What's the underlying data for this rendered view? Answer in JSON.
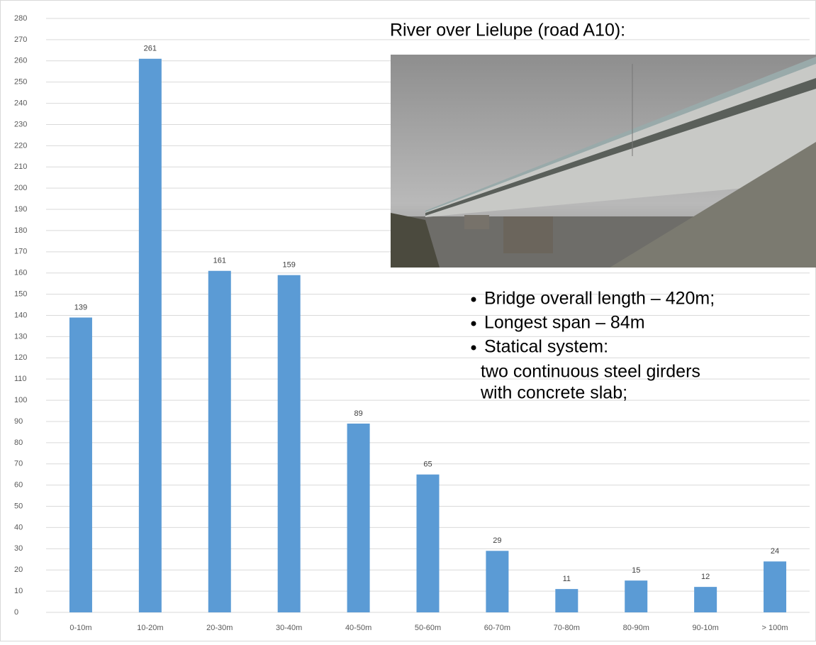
{
  "chart_data": {
    "type": "bar",
    "categories": [
      "0-10m",
      "10-20m",
      "20-30m",
      "30-40m",
      "40-50m",
      "50-60m",
      "60-70m",
      "70-80m",
      "80-90m",
      "90-10m",
      "> 100m"
    ],
    "values": [
      139,
      261,
      161,
      159,
      89,
      65,
      29,
      11,
      15,
      12,
      24
    ],
    "color": "#5b9bd5",
    "ylim": [
      0,
      280
    ],
    "yticks": [
      0,
      10,
      20,
      30,
      40,
      50,
      60,
      70,
      80,
      90,
      100,
      110,
      120,
      130,
      140,
      150,
      160,
      170,
      180,
      190,
      200,
      210,
      220,
      230,
      240,
      250,
      260,
      270,
      280
    ],
    "grid": true,
    "annotations": {
      "heading": "River over Lielupe (road A10):",
      "bullets": [
        "Bridge overall length – 420m;",
        "Longest span – 84m",
        "Statical system:"
      ],
      "continuation": [
        "two continuous steel girders",
        "with concrete slab;"
      ]
    }
  }
}
